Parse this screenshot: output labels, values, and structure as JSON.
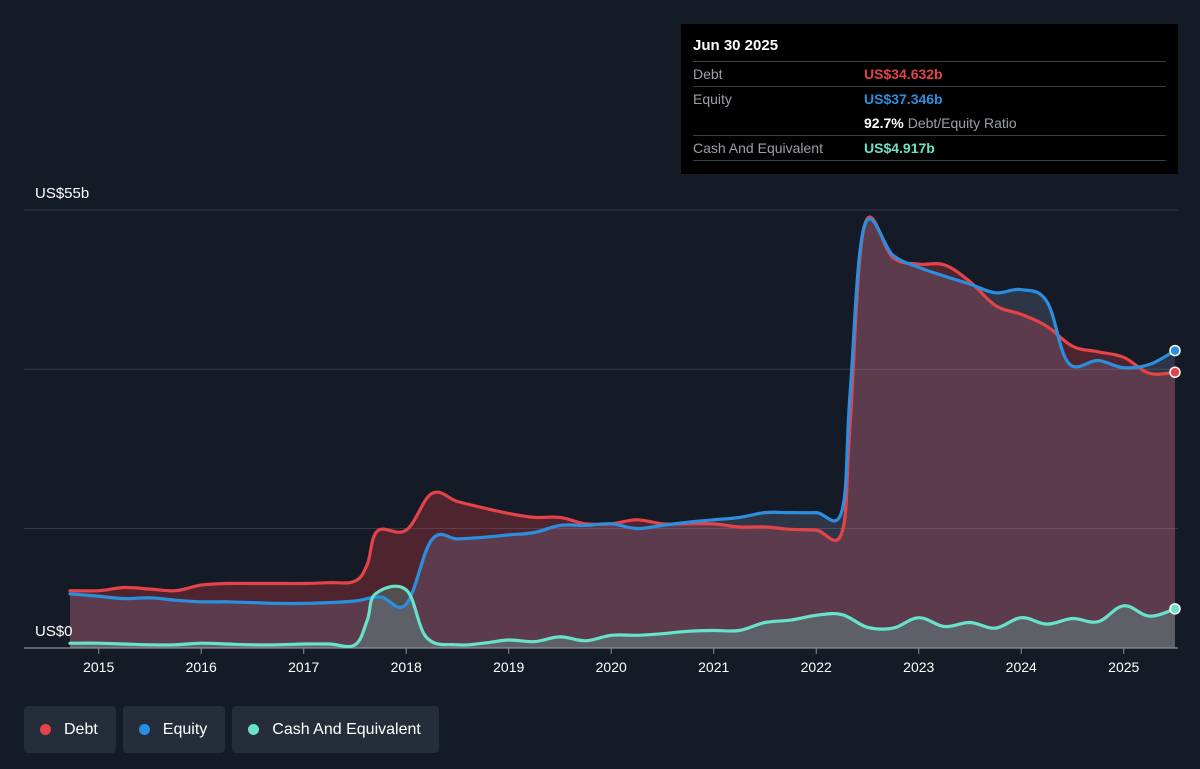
{
  "tooltip": {
    "date": "Jun 30 2025",
    "debt_label": "Debt",
    "debt_value": "US$34.632b",
    "equity_label": "Equity",
    "equity_value": "US$37.346b",
    "ratio_value": "92.7%",
    "ratio_label": "Debt/Equity Ratio",
    "cash_label": "Cash And Equivalent",
    "cash_value": "US$4.917b"
  },
  "legend": {
    "debt": "Debt",
    "equity": "Equity",
    "cash": "Cash And Equivalent"
  },
  "colors": {
    "debt": "#e5434a",
    "equity": "#2b8fe0",
    "cash": "#68e3c9",
    "background": "#151b26"
  },
  "chart_data": {
    "type": "area",
    "y_top_label": "US$55b",
    "y_bottom_label": "US$0",
    "ylim": [
      0,
      55
    ],
    "xlim": [
      2014.72,
      2025.5
    ],
    "x_ticks": [
      "2015",
      "2016",
      "2017",
      "2018",
      "2019",
      "2020",
      "2021",
      "2022",
      "2023",
      "2024",
      "2025"
    ],
    "x_tick_values": [
      2015,
      2016,
      2017,
      2018,
      2019,
      2020,
      2021,
      2022,
      2023,
      2024,
      2025
    ],
    "series": [
      {
        "name": "Debt",
        "key": "debt",
        "points": [
          [
            2014.72,
            7.2
          ],
          [
            2015.0,
            7.2
          ],
          [
            2015.25,
            7.6
          ],
          [
            2015.5,
            7.4
          ],
          [
            2015.75,
            7.2
          ],
          [
            2016.0,
            7.9
          ],
          [
            2016.25,
            8.1
          ],
          [
            2016.5,
            8.1
          ],
          [
            2016.75,
            8.1
          ],
          [
            2017.0,
            8.1
          ],
          [
            2017.25,
            8.2
          ],
          [
            2017.5,
            8.4
          ],
          [
            2017.62,
            10.5
          ],
          [
            2017.72,
            14.7
          ],
          [
            2018.0,
            14.8
          ],
          [
            2018.25,
            19.4
          ],
          [
            2018.5,
            18.4
          ],
          [
            2018.75,
            17.6
          ],
          [
            2019.0,
            16.9
          ],
          [
            2019.25,
            16.4
          ],
          [
            2019.5,
            16.4
          ],
          [
            2019.75,
            15.6
          ],
          [
            2020.0,
            15.6
          ],
          [
            2020.25,
            16.1
          ],
          [
            2020.5,
            15.6
          ],
          [
            2020.75,
            15.6
          ],
          [
            2021.0,
            15.6
          ],
          [
            2021.25,
            15.2
          ],
          [
            2021.5,
            15.2
          ],
          [
            2021.75,
            14.9
          ],
          [
            2022.0,
            14.8
          ],
          [
            2022.25,
            14.5
          ],
          [
            2022.33,
            28.0
          ],
          [
            2022.47,
            53.0
          ],
          [
            2022.75,
            49.0
          ],
          [
            2023.0,
            48.2
          ],
          [
            2023.25,
            48.1
          ],
          [
            2023.5,
            46.0
          ],
          [
            2023.75,
            43.0
          ],
          [
            2024.0,
            41.9
          ],
          [
            2024.25,
            40.4
          ],
          [
            2024.5,
            37.9
          ],
          [
            2024.75,
            37.2
          ],
          [
            2025.0,
            36.5
          ],
          [
            2025.25,
            34.5
          ],
          [
            2025.5,
            34.632
          ]
        ]
      },
      {
        "name": "Equity",
        "key": "equity",
        "points": [
          [
            2014.72,
            6.8
          ],
          [
            2015.0,
            6.5
          ],
          [
            2015.25,
            6.2
          ],
          [
            2015.5,
            6.3
          ],
          [
            2015.75,
            6.0
          ],
          [
            2016.0,
            5.8
          ],
          [
            2016.25,
            5.8
          ],
          [
            2016.5,
            5.7
          ],
          [
            2016.75,
            5.6
          ],
          [
            2017.0,
            5.6
          ],
          [
            2017.25,
            5.7
          ],
          [
            2017.5,
            5.9
          ],
          [
            2017.75,
            6.4
          ],
          [
            2018.0,
            5.5
          ],
          [
            2018.25,
            13.6
          ],
          [
            2018.5,
            13.7
          ],
          [
            2018.75,
            13.9
          ],
          [
            2019.0,
            14.2
          ],
          [
            2019.25,
            14.5
          ],
          [
            2019.5,
            15.4
          ],
          [
            2019.75,
            15.4
          ],
          [
            2020.0,
            15.6
          ],
          [
            2020.25,
            15.0
          ],
          [
            2020.5,
            15.4
          ],
          [
            2020.75,
            15.8
          ],
          [
            2021.0,
            16.1
          ],
          [
            2021.25,
            16.4
          ],
          [
            2021.5,
            17.0
          ],
          [
            2021.75,
            17.0
          ],
          [
            2022.0,
            17.0
          ],
          [
            2022.25,
            17.2
          ],
          [
            2022.33,
            32.0
          ],
          [
            2022.47,
            53.0
          ],
          [
            2022.75,
            49.3
          ],
          [
            2023.0,
            47.8
          ],
          [
            2023.25,
            46.7
          ],
          [
            2023.5,
            45.7
          ],
          [
            2023.75,
            44.6
          ],
          [
            2024.0,
            45.0
          ],
          [
            2024.25,
            43.5
          ],
          [
            2024.46,
            35.8
          ],
          [
            2024.75,
            36.1
          ],
          [
            2025.0,
            35.2
          ],
          [
            2025.25,
            35.6
          ],
          [
            2025.5,
            37.346
          ]
        ]
      },
      {
        "name": "Cash And Equivalent",
        "key": "cash",
        "points": [
          [
            2014.72,
            0.6
          ],
          [
            2015.0,
            0.6
          ],
          [
            2015.25,
            0.5
          ],
          [
            2015.5,
            0.4
          ],
          [
            2015.75,
            0.4
          ],
          [
            2016.0,
            0.6
          ],
          [
            2016.25,
            0.5
          ],
          [
            2016.5,
            0.4
          ],
          [
            2016.75,
            0.4
          ],
          [
            2017.0,
            0.5
          ],
          [
            2017.25,
            0.5
          ],
          [
            2017.5,
            0.4
          ],
          [
            2017.62,
            3.5
          ],
          [
            2017.7,
            6.8
          ],
          [
            2018.0,
            7.3
          ],
          [
            2018.2,
            1.3
          ],
          [
            2018.5,
            0.4
          ],
          [
            2018.75,
            0.6
          ],
          [
            2019.0,
            1.0
          ],
          [
            2019.25,
            0.8
          ],
          [
            2019.5,
            1.4
          ],
          [
            2019.75,
            0.9
          ],
          [
            2020.0,
            1.6
          ],
          [
            2020.25,
            1.6
          ],
          [
            2020.5,
            1.8
          ],
          [
            2020.75,
            2.1
          ],
          [
            2021.0,
            2.2
          ],
          [
            2021.25,
            2.2
          ],
          [
            2021.5,
            3.2
          ],
          [
            2021.75,
            3.5
          ],
          [
            2022.0,
            4.1
          ],
          [
            2022.25,
            4.2
          ],
          [
            2022.5,
            2.6
          ],
          [
            2022.75,
            2.5
          ],
          [
            2023.0,
            3.8
          ],
          [
            2023.25,
            2.7
          ],
          [
            2023.5,
            3.2
          ],
          [
            2023.75,
            2.5
          ],
          [
            2024.0,
            3.8
          ],
          [
            2024.25,
            3.0
          ],
          [
            2024.5,
            3.7
          ],
          [
            2024.75,
            3.3
          ],
          [
            2025.0,
            5.3
          ],
          [
            2025.25,
            4.0
          ],
          [
            2025.5,
            4.917
          ]
        ]
      }
    ]
  }
}
